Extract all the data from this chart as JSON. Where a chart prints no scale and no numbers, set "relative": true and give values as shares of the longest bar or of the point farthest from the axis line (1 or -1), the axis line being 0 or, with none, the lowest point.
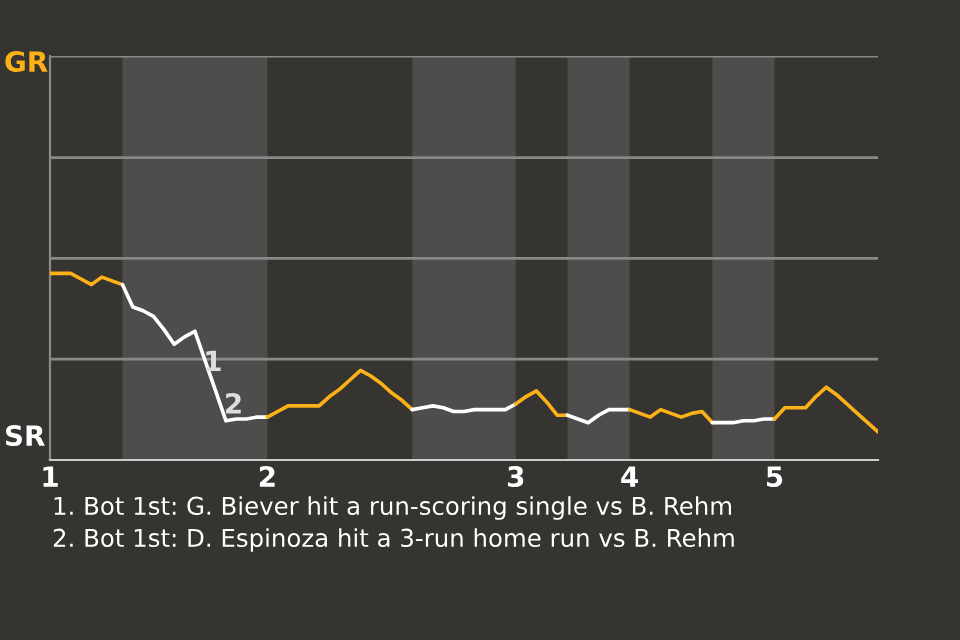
{
  "chart_data": {
    "type": "line",
    "relative": true,
    "tick_labels": "x",
    "categories": [
      "1",
      null,
      null,
      null,
      null,
      null,
      null,
      null,
      null,
      null,
      null,
      null,
      null,
      null,
      null,
      null,
      null,
      null,
      null,
      null,
      null,
      "2",
      null,
      null,
      null,
      null,
      null,
      null,
      null,
      null,
      null,
      null,
      null,
      null,
      null,
      null,
      null,
      null,
      null,
      null,
      null,
      null,
      null,
      null,
      null,
      "3",
      null,
      null,
      null,
      null,
      null,
      null,
      null,
      null,
      null,
      null,
      "4",
      null,
      null,
      null,
      null,
      null,
      null,
      null,
      null,
      null,
      null,
      null,
      null,
      null,
      "5",
      null,
      null,
      null,
      null,
      null,
      null,
      null,
      null,
      null,
      null
    ],
    "marker": "none",
    "line_style": "solid",
    "ref_lines": [
      {
        "axis": "y",
        "value": 0.54,
        "color": "#8a8987"
      },
      {
        "axis": "y",
        "value": 1.08,
        "color": "#8a8987"
      },
      {
        "axis": "y",
        "value": 1.62,
        "color": "#8a8987"
      },
      {
        "axis": "y",
        "value": 2.165,
        "color": "#8a8987"
      }
    ],
    "series": [
      {
        "color": "#fbb117",
        "values": [
          1,
          1,
          1,
          0.97,
          0.94,
          0.98,
          0.96,
          0.94,
          null,
          null,
          null,
          null,
          null,
          null,
          null,
          null,
          null,
          null,
          null,
          null,
          null,
          null,
          null,
          null,
          null,
          null,
          null,
          null,
          null,
          null,
          null,
          null,
          null,
          null,
          null,
          null,
          null,
          null,
          null,
          null,
          null,
          null,
          null,
          null,
          null,
          null,
          null,
          null,
          null,
          null,
          null,
          null,
          null,
          null,
          null,
          null,
          null,
          null,
          null,
          null,
          null,
          null,
          null,
          null,
          null,
          null,
          null,
          null,
          null,
          null,
          null,
          null,
          null,
          null,
          null,
          null,
          null,
          null,
          null,
          null,
          null
        ]
      },
      {
        "color": "#ffffff",
        "values": [
          null,
          null,
          null,
          null,
          null,
          null,
          null,
          0.94,
          0.82,
          0.8,
          0.77,
          0.7,
          0.62,
          0.66,
          0.69,
          0.53,
          0.37,
          0.21,
          0.22,
          0.22,
          0.23,
          0.23,
          null,
          null,
          null,
          null,
          null,
          null,
          null,
          null,
          null,
          null,
          null,
          null,
          null,
          null,
          null,
          null,
          null,
          null,
          null,
          null,
          null,
          null,
          null,
          null,
          null,
          null,
          null,
          null,
          null,
          null,
          null,
          null,
          null,
          null,
          null,
          null,
          null,
          null,
          null,
          null,
          null,
          null,
          null,
          null,
          null,
          null,
          null,
          null,
          null,
          null,
          null,
          null,
          null,
          null,
          null,
          null,
          null,
          null,
          null
        ],
        "type": "line"
      },
      {
        "color": "#fbb117",
        "values": [
          null,
          null,
          null,
          null,
          null,
          null,
          null,
          null,
          null,
          null,
          null,
          null,
          null,
          null,
          null,
          null,
          null,
          null,
          null,
          null,
          null,
          0.23,
          0.26,
          0.29,
          0.29,
          0.29,
          0.29,
          0.34,
          0.38,
          0.43,
          0.48,
          0.45,
          0.41,
          0.36,
          0.32,
          0.27,
          null,
          null,
          null,
          null,
          null,
          null,
          null,
          null,
          null,
          null,
          null,
          null,
          null,
          null,
          null,
          null,
          null,
          null,
          null,
          null,
          null,
          null,
          null,
          null,
          null,
          null,
          null,
          null,
          null,
          null,
          null,
          null,
          null,
          null,
          null,
          null,
          null,
          null,
          null,
          null,
          null,
          null,
          null,
          null,
          null
        ]
      },
      {
        "color": "#ffffff",
        "values": [
          null,
          null,
          null,
          null,
          null,
          null,
          null,
          null,
          null,
          null,
          null,
          null,
          null,
          null,
          null,
          null,
          null,
          null,
          null,
          null,
          null,
          null,
          null,
          null,
          null,
          null,
          null,
          null,
          null,
          null,
          null,
          null,
          null,
          null,
          null,
          0.27,
          0.28,
          0.29,
          0.28,
          0.26,
          0.26,
          0.27,
          0.27,
          0.27,
          0.27,
          0.3,
          null,
          null,
          null,
          null,
          null,
          null,
          null,
          null,
          null,
          null,
          null,
          null,
          null,
          null,
          null,
          null,
          null,
          null,
          null,
          null,
          null,
          null,
          null,
          null,
          null,
          null,
          null,
          null,
          null,
          null,
          null,
          null,
          null,
          null,
          null
        ]
      },
      {
        "color": "#fbb117",
        "values": [
          null,
          null,
          null,
          null,
          null,
          null,
          null,
          null,
          null,
          null,
          null,
          null,
          null,
          null,
          null,
          null,
          null,
          null,
          null,
          null,
          null,
          null,
          null,
          null,
          null,
          null,
          null,
          null,
          null,
          null,
          null,
          null,
          null,
          null,
          null,
          null,
          null,
          null,
          null,
          null,
          null,
          null,
          null,
          null,
          null,
          0.3,
          0.34,
          0.37,
          0.31,
          0.24,
          0.24,
          null,
          null,
          null,
          null,
          null,
          null,
          null,
          null,
          null,
          null,
          null,
          null,
          null,
          null,
          null,
          null,
          null,
          null,
          null,
          null,
          null,
          null,
          null,
          null,
          null,
          null,
          null,
          null,
          null,
          null
        ]
      },
      {
        "color": "#ffffff",
        "values": [
          null,
          null,
          null,
          null,
          null,
          null,
          null,
          null,
          null,
          null,
          null,
          null,
          null,
          null,
          null,
          null,
          null,
          null,
          null,
          null,
          null,
          null,
          null,
          null,
          null,
          null,
          null,
          null,
          null,
          null,
          null,
          null,
          null,
          null,
          null,
          null,
          null,
          null,
          null,
          null,
          null,
          null,
          null,
          null,
          null,
          null,
          null,
          null,
          null,
          null,
          0.24,
          0.22,
          0.2,
          0.24,
          0.27,
          0.27,
          0.27,
          null,
          null,
          null,
          null,
          null,
          null,
          null,
          null,
          null,
          null,
          null,
          null,
          null,
          null,
          null,
          null,
          null,
          null,
          null,
          null,
          null,
          null,
          null,
          null
        ]
      },
      {
        "color": "#fbb117",
        "values": [
          null,
          null,
          null,
          null,
          null,
          null,
          null,
          null,
          null,
          null,
          null,
          null,
          null,
          null,
          null,
          null,
          null,
          null,
          null,
          null,
          null,
          null,
          null,
          null,
          null,
          null,
          null,
          null,
          null,
          null,
          null,
          null,
          null,
          null,
          null,
          null,
          null,
          null,
          null,
          null,
          null,
          null,
          null,
          null,
          null,
          null,
          null,
          null,
          null,
          null,
          null,
          null,
          null,
          null,
          null,
          null,
          0.27,
          0.25,
          0.23,
          0.27,
          0.25,
          0.23,
          0.25,
          0.26,
          0.2,
          null,
          null,
          null,
          null,
          null,
          null,
          null,
          null,
          null,
          null,
          null,
          null,
          null,
          null,
          null,
          null
        ]
      },
      {
        "color": "#ffffff",
        "values": [
          null,
          null,
          null,
          null,
          null,
          null,
          null,
          null,
          null,
          null,
          null,
          null,
          null,
          null,
          null,
          null,
          null,
          null,
          null,
          null,
          null,
          null,
          null,
          null,
          null,
          null,
          null,
          null,
          null,
          null,
          null,
          null,
          null,
          null,
          null,
          null,
          null,
          null,
          null,
          null,
          null,
          null,
          null,
          null,
          null,
          null,
          null,
          null,
          null,
          null,
          null,
          null,
          null,
          null,
          null,
          null,
          null,
          null,
          null,
          null,
          null,
          null,
          null,
          null,
          0.2,
          0.2,
          0.2,
          0.21,
          0.21,
          0.22,
          0.22,
          null,
          null,
          null,
          null,
          null,
          null,
          null,
          null,
          null,
          null
        ]
      },
      {
        "color": "#fbb117",
        "values": [
          null,
          null,
          null,
          null,
          null,
          null,
          null,
          null,
          null,
          null,
          null,
          null,
          null,
          null,
          null,
          null,
          null,
          null,
          null,
          null,
          null,
          null,
          null,
          null,
          null,
          null,
          null,
          null,
          null,
          null,
          null,
          null,
          null,
          null,
          null,
          null,
          null,
          null,
          null,
          null,
          null,
          null,
          null,
          null,
          null,
          null,
          null,
          null,
          null,
          null,
          null,
          null,
          null,
          null,
          null,
          null,
          null,
          null,
          null,
          null,
          null,
          null,
          null,
          null,
          null,
          null,
          null,
          null,
          null,
          null,
          0.22,
          0.28,
          0.28,
          0.28,
          0.34,
          0.39,
          0.35,
          0.3,
          0.25,
          0.2,
          0.15
        ]
      }
    ],
    "annotations": [
      "1",
      "2",
      "GR",
      "SR",
      "1. Bot 1st: G. Biever hit a run-scoring single vs B. Rehm",
      "2. Bot 1st: D. Espinoza hit a 3-run home run vs B. Rehm"
    ]
  }
}
